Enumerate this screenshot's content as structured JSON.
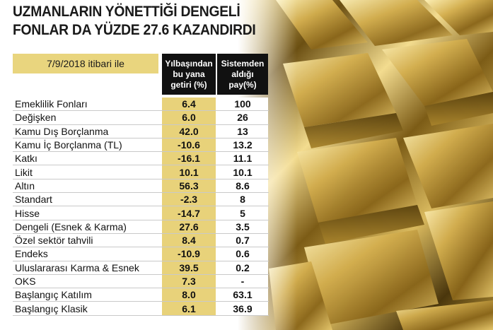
{
  "header": {
    "title_line1": "UZMANLARIN YÖNETTİĞİ DENGELİ",
    "title_line2": "FONLAR DA YÜZDE 27.6 KAZANDIRDI",
    "date_label": "7/9/2018 itibari ile"
  },
  "columns": {
    "ytd_return": [
      "Yılbaşından",
      "bu yana",
      "getiri (%)"
    ],
    "system_share": [
      "Sistemden",
      "aldığı",
      "pay(%)"
    ]
  },
  "chart_data": {
    "type": "table",
    "title": "UZMANLARIN YÖNETTİĞİ DENGELİ FONLAR DA YÜZDE 27.6 KAZANDIRDI",
    "columns": [
      "Yılbaşından bu yana getiri (%)",
      "Sistemden aldığı pay(%)"
    ],
    "rows": [
      {
        "name": "Emeklilik Fonları",
        "ytd": "6.4",
        "share": "100"
      },
      {
        "name": "Değişken",
        "ytd": "6.0",
        "share": "26"
      },
      {
        "name": "Kamu Dış Borçlanma",
        "ytd": "42.0",
        "share": "13"
      },
      {
        "name": "Kamu İç Borçlanma (TL)",
        "ytd": "-10.6",
        "share": "13.2"
      },
      {
        "name": "Katkı",
        "ytd": "-16.1",
        "share": "11.1"
      },
      {
        "name": "Likit",
        "ytd": "10.1",
        "share": "10.1"
      },
      {
        "name": "Altın",
        "ytd": "56.3",
        "share": "8.6"
      },
      {
        "name": "Standart",
        "ytd": "-2.3",
        "share": "8"
      },
      {
        "name": "Hisse",
        "ytd": "-14.7",
        "share": "5"
      },
      {
        "name": "Dengeli (Esnek & Karma)",
        "ytd": "27.6",
        "share": "3.5"
      },
      {
        "name": "Özel sektör tahvili",
        "ytd": "8.4",
        "share": "0.7"
      },
      {
        "name": "Endeks",
        "ytd": "-10.9",
        "share": "0.6"
      },
      {
        "name": "Uluslararası Karma & Esnek",
        "ytd": "39.5",
        "share": "0.2"
      },
      {
        "name": "OKS",
        "ytd": "7.3",
        "share": "-"
      },
      {
        "name": "Başlangıç Katılım",
        "ytd": "8.0",
        "share": "63.1"
      },
      {
        "name": "Başlangıç Klasik",
        "ytd": "6.1",
        "share": "36.9"
      }
    ]
  },
  "colors": {
    "gold_cell": "#e8d27a",
    "header_bg": "#111111"
  }
}
